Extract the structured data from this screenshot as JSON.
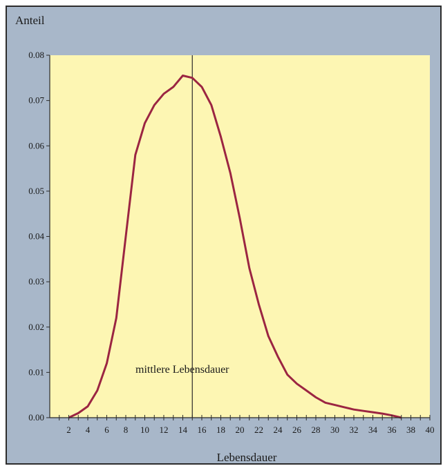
{
  "chart_data": {
    "type": "line",
    "ylabel": "Anteil",
    "xlabel": "Lebensdauer",
    "xlim": [
      0,
      40
    ],
    "ylim": [
      0,
      0.08
    ],
    "x_ticks": [
      2,
      4,
      6,
      8,
      10,
      12,
      14,
      16,
      18,
      20,
      22,
      24,
      26,
      28,
      30,
      32,
      34,
      36,
      38,
      40
    ],
    "y_ticks": [
      "0.00",
      "0.01",
      "0.02",
      "0.03",
      "0.04",
      "0.05",
      "0.06",
      "0.07",
      "0.08"
    ],
    "grid": false,
    "series": [
      {
        "color": "#9b2542",
        "x": [
          2,
          3,
          4,
          5,
          6,
          7,
          8,
          9,
          10,
          11,
          12,
          13,
          14,
          15,
          16,
          17,
          18,
          19,
          20,
          21,
          22,
          23,
          24,
          25,
          26,
          27,
          28,
          29,
          30,
          31,
          32,
          33,
          34,
          35,
          36,
          37
        ],
        "y": [
          0.0,
          0.001,
          0.0025,
          0.006,
          0.012,
          0.022,
          0.04,
          0.058,
          0.065,
          0.069,
          0.0715,
          0.073,
          0.0755,
          0.075,
          0.073,
          0.069,
          0.062,
          0.054,
          0.044,
          0.033,
          0.025,
          0.018,
          0.0135,
          0.0095,
          0.0075,
          0.006,
          0.0045,
          0.0033,
          0.0028,
          0.0023,
          0.0018,
          0.0015,
          0.0012,
          0.0009,
          0.0005,
          0.0
        ]
      }
    ],
    "vline": {
      "x": 15,
      "label": "mittlere Lebensdauer"
    }
  },
  "colors": {
    "panel": "#a8b7c9",
    "plot_bg": "#fdf6b3",
    "curve": "#9b2542",
    "axis": "#2a2a2a"
  }
}
